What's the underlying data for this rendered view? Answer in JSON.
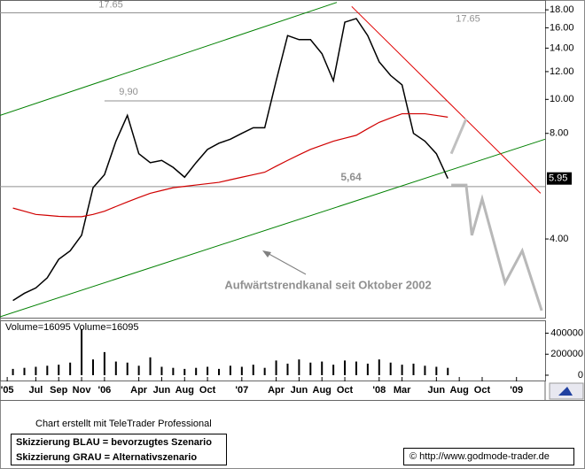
{
  "chart_data": {
    "type": "line",
    "scale": "log",
    "x": [
      4,
      5,
      6,
      7,
      8,
      9,
      10,
      11,
      12,
      13,
      14,
      15,
      16,
      17,
      18,
      19,
      20,
      21,
      22,
      23,
      24,
      25,
      26,
      27,
      28,
      29,
      30,
      31,
      32,
      33,
      34,
      35,
      36,
      37,
      38,
      39,
      40,
      41,
      42
    ],
    "xlim": [
      2.87,
      50.5
    ],
    "xticks": [
      {
        "value": 3.5,
        "label": "'05"
      },
      {
        "value": 6,
        "label": "Jul"
      },
      {
        "value": 8,
        "label": "Sep"
      },
      {
        "value": 10,
        "label": "Nov"
      },
      {
        "value": 12,
        "label": "'06"
      },
      {
        "value": 15,
        "label": "Apr"
      },
      {
        "value": 17,
        "label": "Jun"
      },
      {
        "value": 19,
        "label": "Aug"
      },
      {
        "value": 21,
        "label": "Oct"
      },
      {
        "value": 24,
        "label": "'07"
      },
      {
        "value": 27,
        "label": "Apr"
      },
      {
        "value": 29,
        "label": "Jun"
      },
      {
        "value": 31,
        "label": "Aug"
      },
      {
        "value": 33,
        "label": "Oct"
      },
      {
        "value": 36,
        "label": "'08"
      },
      {
        "value": 38,
        "label": "Mar"
      },
      {
        "value": 41,
        "label": "Jun"
      },
      {
        "value": 43,
        "label": "Aug"
      },
      {
        "value": 45,
        "label": "Oct"
      },
      {
        "value": 48,
        "label": "'09"
      }
    ],
    "ylim": [
      2.4,
      19.2
    ],
    "yticks": [
      {
        "value": 4,
        "label": "4.00"
      },
      {
        "value": 8,
        "label": "8.00"
      },
      {
        "value": 10,
        "label": "10.00"
      },
      {
        "value": 12,
        "label": "12.00"
      },
      {
        "value": 14,
        "label": "14.00"
      },
      {
        "value": 16,
        "label": "16.00"
      },
      {
        "value": 18,
        "label": "18.00"
      }
    ],
    "series": [
      {
        "color": "#000000",
        "values": [
          2.67,
          2.8,
          2.9,
          3.1,
          3.5,
          3.7,
          4.1,
          5.6,
          6.1,
          7.6,
          9.0,
          7.0,
          6.6,
          6.7,
          6.4,
          6.0,
          6.6,
          7.2,
          7.5,
          7.7,
          8.0,
          8.3,
          8.3,
          11.3,
          15.2,
          14.8,
          14.8,
          13.5,
          11.3,
          16.6,
          17.0,
          15.2,
          12.8,
          11.7,
          11.0,
          8.0,
          7.6,
          7.0,
          5.95
        ]
      },
      {
        "color": "#d00000",
        "values": [
          4.9,
          4.8,
          4.7,
          4.67,
          4.64,
          4.63,
          4.63,
          4.7,
          4.8,
          4.95,
          5.1,
          5.25,
          5.4,
          5.5,
          5.6,
          5.65,
          5.7,
          5.75,
          5.8,
          5.9,
          6.0,
          6.1,
          6.2,
          6.45,
          6.7,
          6.95,
          7.2,
          7.4,
          7.6,
          7.75,
          7.9,
          8.25,
          8.6,
          8.85,
          9.1,
          9.1,
          9.1,
          9.0,
          8.9
        ]
      }
    ],
    "trendlines": [
      {
        "color": "#008000",
        "x": [
          2.87,
          32.3
        ],
        "values": [
          9.0,
          18.9
        ]
      },
      {
        "color": "#008000",
        "x": [
          2.87,
          50.5
        ],
        "values": [
          2.4,
          7.7
        ]
      },
      {
        "color": "#e00000",
        "x": [
          33.6,
          50.1
        ],
        "values": [
          18.4,
          5.4
        ]
      },
      {
        "color": "#c0c0c0",
        "x": [
          42.3,
          43.6
        ],
        "values": [
          7.0,
          8.8
        ]
      },
      {
        "color": "#b8b8b8",
        "x": [
          42.3,
          43.6,
          44.1,
          45,
          47,
          48.5,
          50.2
        ],
        "values": [
          5.7,
          5.7,
          4.1,
          5.2,
          3.0,
          3.7,
          2.5
        ]
      }
    ],
    "levels": [
      {
        "value": 17.65,
        "label": "17.65"
      },
      {
        "value": 9.9,
        "label": "9,90",
        "x": [
          12,
          42
        ]
      },
      {
        "value": 5.64,
        "label": "5,64"
      }
    ],
    "last_price": {
      "value": 5.95,
      "label": "5.95"
    },
    "annotation": "Aufwärtstrendkanal seit Oktober 2002",
    "volume": {
      "label": "Volume=16095 Volume=16095",
      "color": "#000000",
      "values": [
        60000,
        70000,
        80000,
        90000,
        100000,
        120000,
        440000,
        150000,
        220000,
        130000,
        120000,
        90000,
        170000,
        80000,
        70000,
        60000,
        70000,
        80000,
        60000,
        90000,
        80000,
        100000,
        70000,
        140000,
        110000,
        150000,
        120000,
        130000,
        100000,
        140000,
        130000,
        110000,
        150000,
        120000,
        100000,
        110000,
        90000,
        80000,
        70000
      ],
      "ylim": [
        0,
        514000
      ],
      "yticks": [
        0,
        200000,
        400000
      ]
    }
  },
  "footer": {
    "credit": "Chart erstellt mit TeleTrader Professional",
    "legend": [
      "Skizzierung BLAU = bevorzugtes Szenario",
      "Skizzierung GRAU = Alternativszenario"
    ],
    "source": "© http://www.godmode-trader.de"
  }
}
